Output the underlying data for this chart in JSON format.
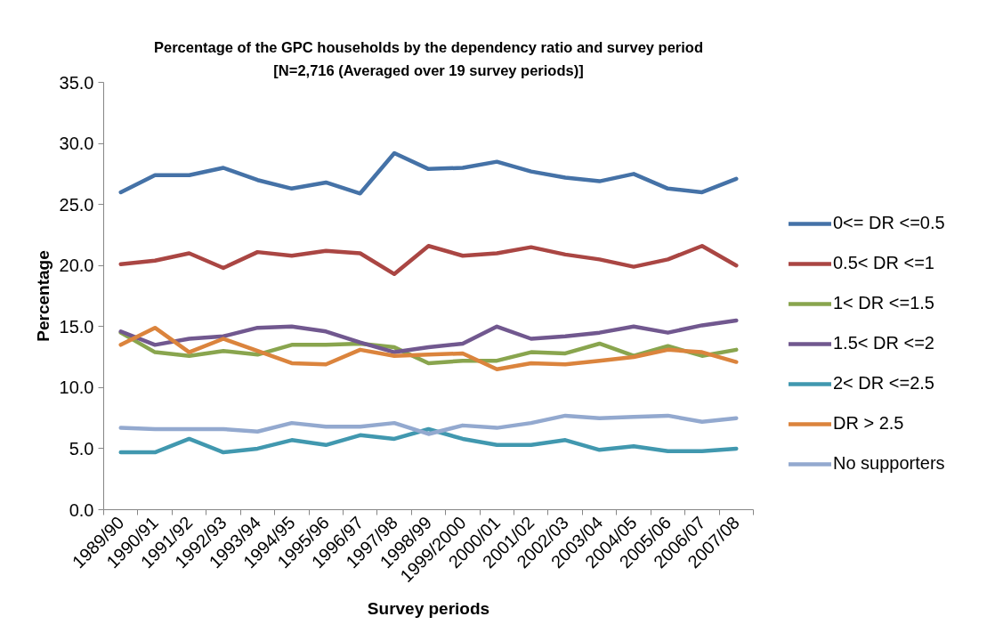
{
  "chart_data": {
    "type": "line",
    "title": "Percentage of the GPC households by the dependency ratio and survey period",
    "subtitle": "[N=2,716 (Averaged over 19 survey periods)]",
    "xlabel": "Survey periods",
    "ylabel": "Percentage",
    "categories": [
      "1989/90",
      "1990/91",
      "1991/92",
      "1992/93",
      "1993/94",
      "1994/95",
      "1995/96",
      "1996/97",
      "1997/98",
      "1998/99",
      "1999/2000",
      "2000/01",
      "2001/02",
      "2002/03",
      "2003/04",
      "2004/05",
      "2005/06",
      "2006/07",
      "2007/08"
    ],
    "ylim": [
      0,
      35
    ],
    "yticks": [
      {
        "value": 0,
        "label": "0.0"
      },
      {
        "value": 5,
        "label": "5.0"
      },
      {
        "value": 10,
        "label": "10.0"
      },
      {
        "value": 15,
        "label": "15.0"
      },
      {
        "value": 20,
        "label": "20.0"
      },
      {
        "value": 25,
        "label": "25.0"
      },
      {
        "value": 30,
        "label": "30.0"
      },
      {
        "value": 35,
        "label": "35.0"
      }
    ],
    "grid": false,
    "legend": "right",
    "line_style": "solid",
    "series": [
      {
        "name": "0<= DR <=0.5",
        "color": "#4572a7",
        "values": [
          26.0,
          27.4,
          27.4,
          28.0,
          27.0,
          26.3,
          26.8,
          25.9,
          29.2,
          27.9,
          28.0,
          28.5,
          27.7,
          27.2,
          26.9,
          27.5,
          26.3,
          26.0,
          27.1
        ]
      },
      {
        "name": "0.5< DR <=1",
        "color": "#aa4643",
        "values": [
          20.1,
          20.4,
          21.0,
          19.8,
          21.1,
          20.8,
          21.2,
          21.0,
          19.3,
          21.6,
          20.8,
          21.0,
          21.5,
          20.9,
          20.5,
          19.9,
          20.5,
          21.6,
          20.0
        ]
      },
      {
        "name": "1< DR <=1.5",
        "color": "#89a54e",
        "values": [
          14.5,
          12.9,
          12.6,
          13.0,
          12.7,
          13.5,
          13.5,
          13.6,
          13.3,
          12.0,
          12.2,
          12.2,
          12.9,
          12.8,
          13.6,
          12.6,
          13.4,
          12.6,
          13.1
        ]
      },
      {
        "name": "1.5< DR <=2",
        "color": "#71588f",
        "values": [
          14.6,
          13.5,
          14.0,
          14.2,
          14.9,
          15.0,
          14.6,
          13.7,
          12.9,
          13.3,
          13.6,
          15.0,
          14.0,
          14.2,
          14.5,
          15.0,
          14.5,
          15.1,
          15.5
        ]
      },
      {
        "name": "2< DR <=2.5",
        "color": "#4198af",
        "values": [
          4.7,
          4.7,
          5.8,
          4.7,
          5.0,
          5.7,
          5.3,
          6.1,
          5.8,
          6.6,
          5.8,
          5.3,
          5.3,
          5.7,
          4.9,
          5.2,
          4.8,
          4.8,
          5.0
        ]
      },
      {
        "name": "DR > 2.5",
        "color": "#db843d",
        "values": [
          13.5,
          14.9,
          12.9,
          14.0,
          13.0,
          12.0,
          11.9,
          13.1,
          12.6,
          12.7,
          12.8,
          11.5,
          12.0,
          11.9,
          12.2,
          12.5,
          13.1,
          12.9,
          12.1
        ]
      },
      {
        "name": "No supporters",
        "color": "#93a9cf",
        "values": [
          6.7,
          6.6,
          6.6,
          6.6,
          6.4,
          7.1,
          6.8,
          6.8,
          7.1,
          6.2,
          6.9,
          6.7,
          7.1,
          7.7,
          7.5,
          7.6,
          7.7,
          7.2,
          7.5
        ]
      }
    ]
  }
}
